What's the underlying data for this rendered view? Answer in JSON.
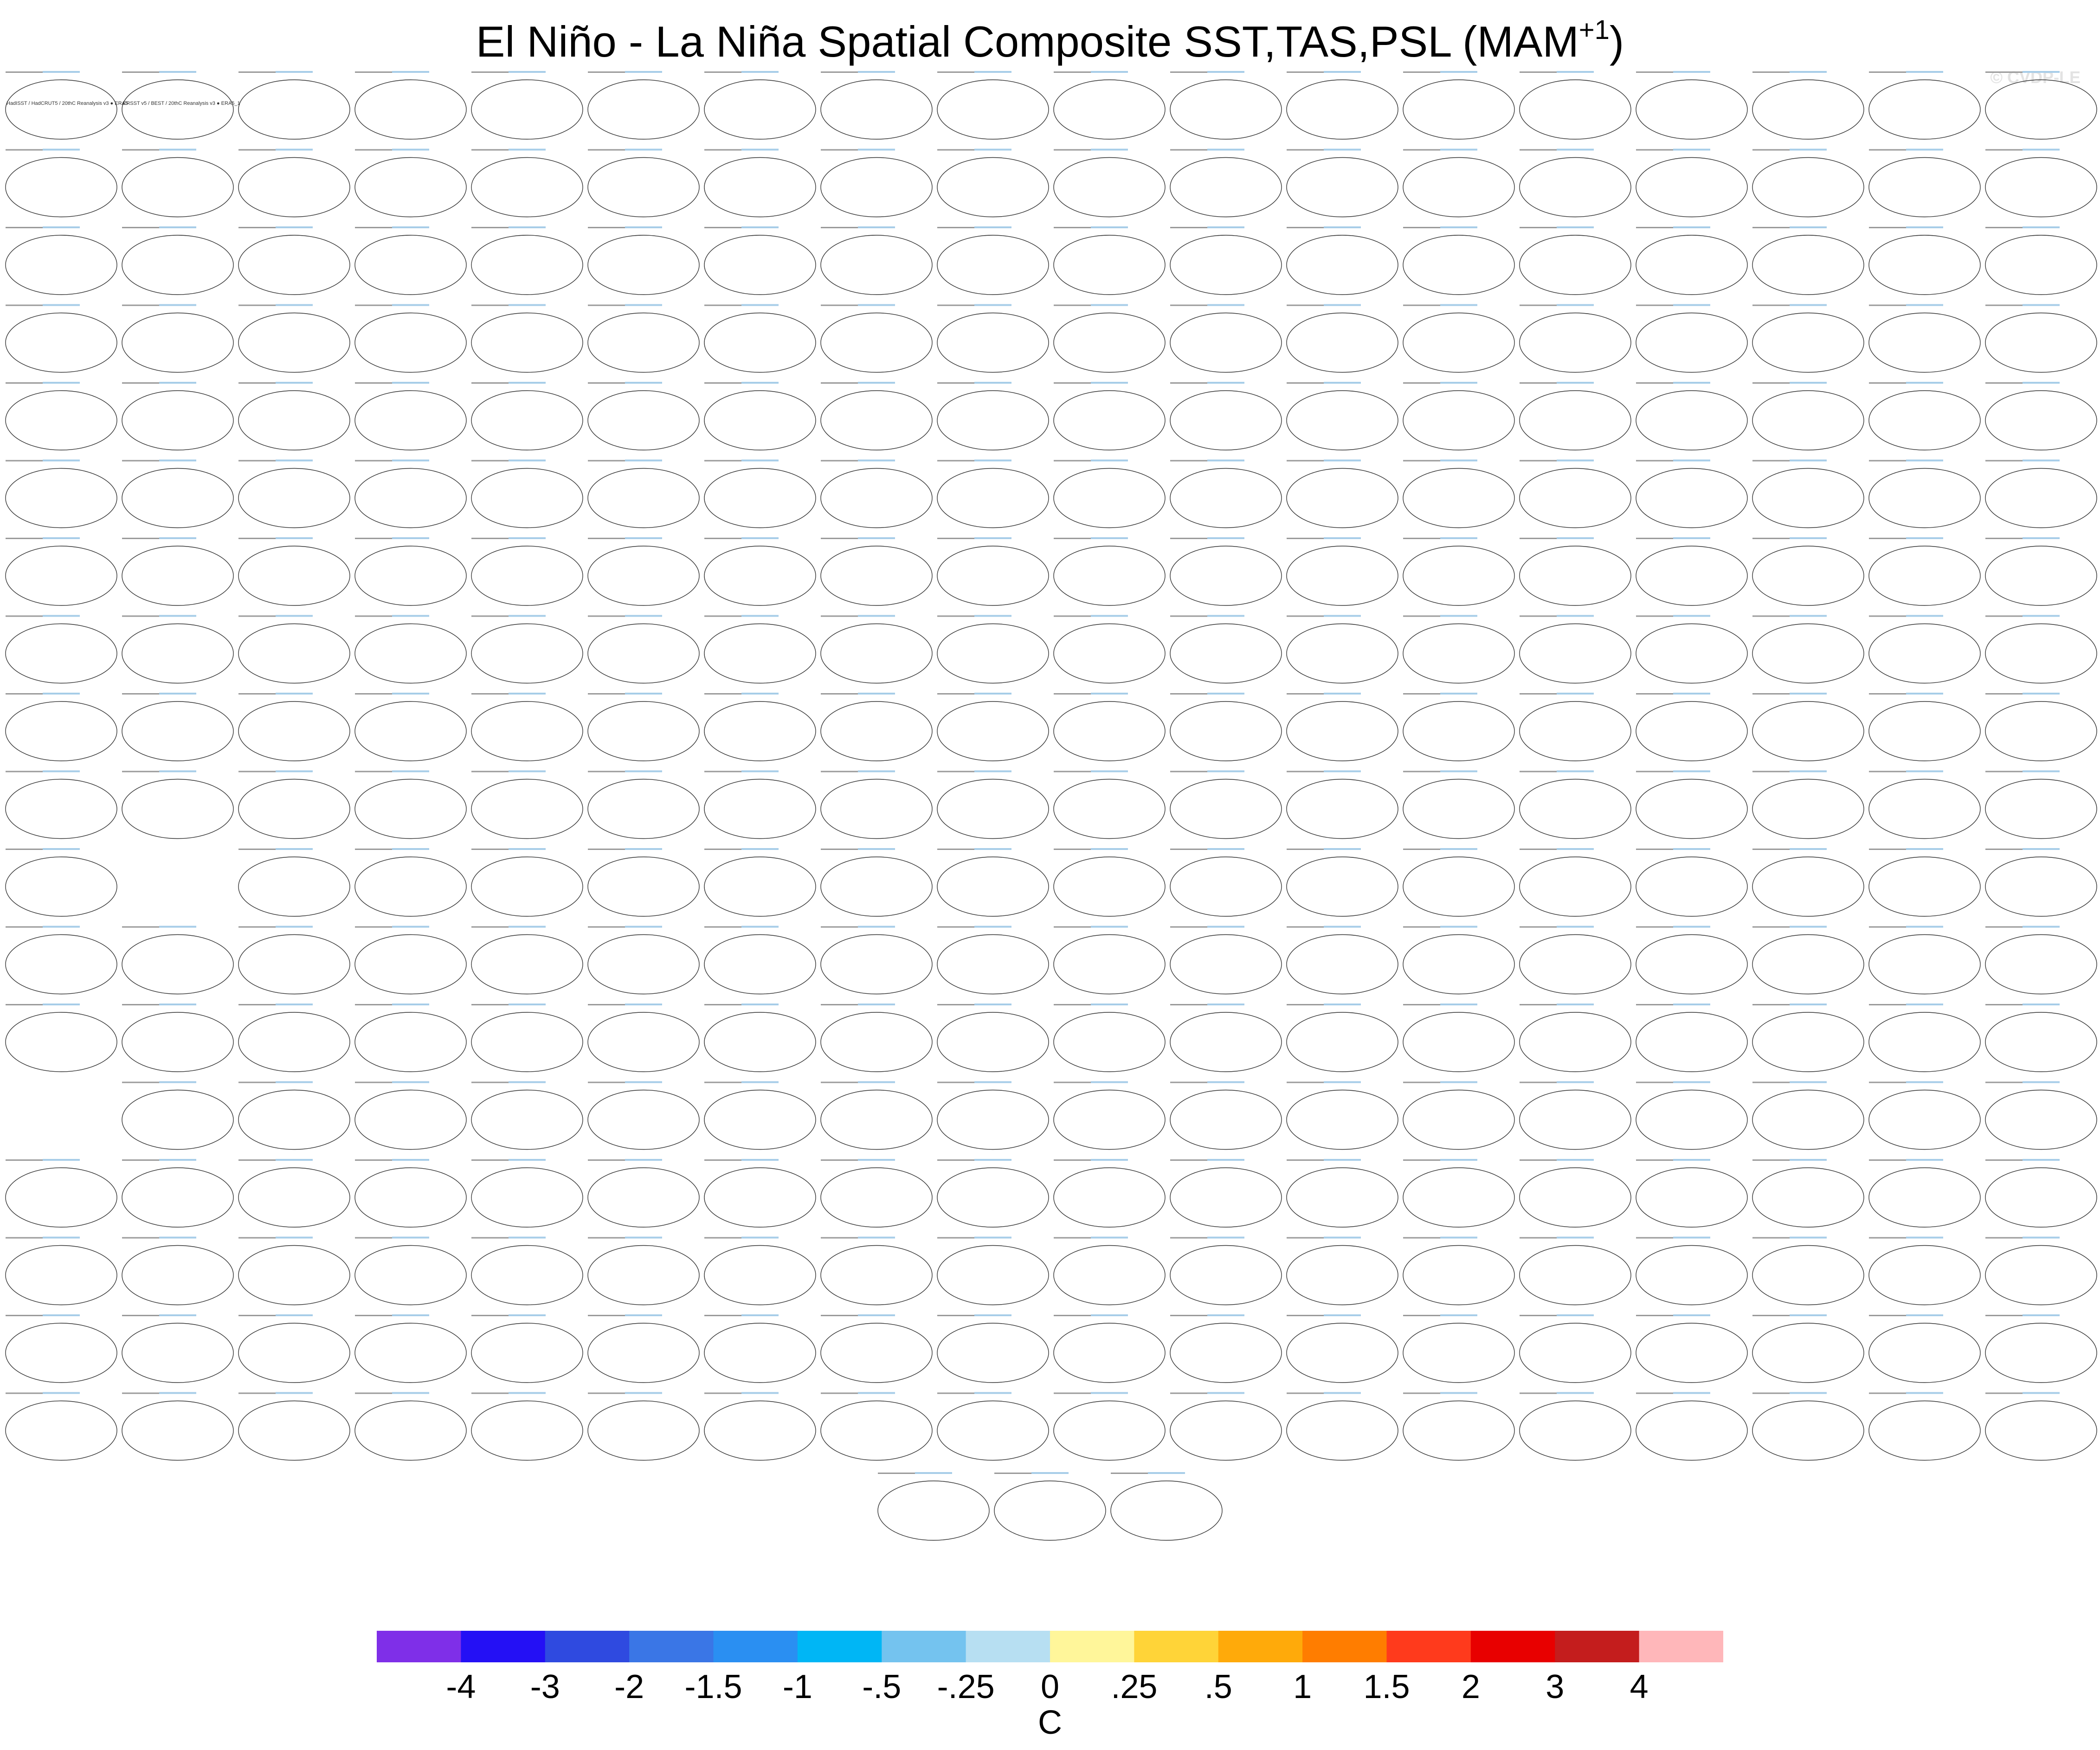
{
  "title": {
    "main": "El Niño - La Niña Spatial Composite SST,TAS,PSL (MAM",
    "superscript": "+1",
    "close": ")"
  },
  "copyright": "© CVDP-LE",
  "panel_grid": {
    "columns": 18,
    "rows": 18,
    "missing": [
      [
        10,
        1
      ],
      [
        13,
        0
      ]
    ],
    "extra_row_panels": 3,
    "first_panel_headers": [
      "HadISST / HadCRUT5 / 20thC Reanalysis v3 ● ERA5",
      "ERSST v5 / BEST / 20thC Reanalysis v3 ● ERA5_1"
    ]
  },
  "colorbar": {
    "colors": [
      "#7f2fe8",
      "#2410f5",
      "#2f4ae0",
      "#3a76e6",
      "#2a8ff2",
      "#00b6f5",
      "#74c3ef",
      "#b7dff2",
      "#fff69a",
      "#ffd438",
      "#ffaa0a",
      "#ff7d00",
      "#ff3a1c",
      "#e80000",
      "#c41d1d",
      "#ffb7ba"
    ],
    "labels": [
      "-4",
      "-3",
      "-2",
      "-1.5",
      "-1",
      "-.5",
      "-.25",
      "0",
      ".25",
      ".5",
      "1",
      "1.5",
      "2",
      "3",
      "4"
    ],
    "units": "C"
  }
}
